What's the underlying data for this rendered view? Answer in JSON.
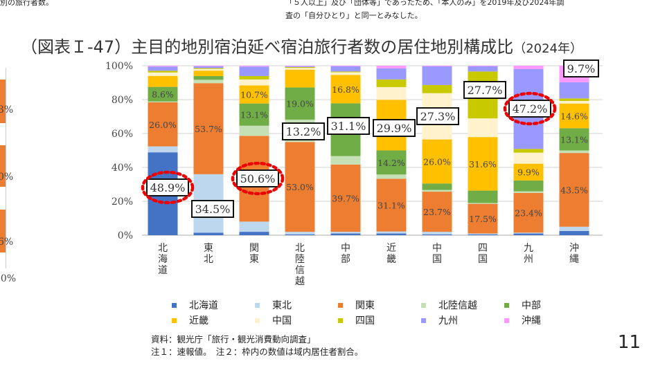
{
  "top_notes": {
    "left": "別の旅行者数。",
    "right_line1": "「５人以上」及び「団体等」であったため、「本人のみ」を2019年及び2024年調",
    "right_line2": "査の「自分ひとり」と同一とみなした。"
  },
  "title": "（図表Ｉ-47）主目的地別宿泊延べ宿泊旅行者数の居住地別構成比",
  "title_year": "（2024年）",
  "left_panel_partial": {
    "labels": [
      "3%",
      "0%",
      "6%"
    ],
    "axis_label": "00%"
  },
  "chart_data": {
    "type": "bar",
    "stacked": true,
    "percent": true,
    "xlabel": "",
    "ylabel": "",
    "ylim": [
      0,
      100
    ],
    "yticks": [
      "0%",
      "20%",
      "40%",
      "60%",
      "80%",
      "100%"
    ],
    "grid": true,
    "legend_position": "bottom",
    "categories": [
      "北海道",
      "東北",
      "関東",
      "北陸信越",
      "中部",
      "近畿",
      "中国",
      "四国",
      "九州",
      "沖縄"
    ],
    "series": [
      {
        "name": "北海道",
        "color": "#4472c4",
        "values": [
          48.9,
          1.5,
          2.0,
          0.5,
          1.0,
          1.0,
          0.5,
          0.5,
          1.0,
          2.5
        ]
      },
      {
        "name": "東北",
        "color": "#bdd7ee",
        "values": [
          3.5,
          34.5,
          6.0,
          1.5,
          1.0,
          1.2,
          1.5,
          0.5,
          0.5,
          2.5
        ]
      },
      {
        "name": "関東",
        "color": "#ed7d31",
        "values": [
          26.0,
          53.7,
          50.6,
          53.0,
          39.7,
          31.1,
          23.7,
          17.5,
          23.4,
          43.5
        ]
      },
      {
        "name": "北陸信越",
        "color": "#c5e0b4",
        "values": [
          0.5,
          2.0,
          6.0,
          13.2,
          5.0,
          2.5,
          1.0,
          0.5,
          1.0,
          1.5
        ]
      },
      {
        "name": "中部",
        "color": "#70ad47",
        "values": [
          8.6,
          2.2,
          13.1,
          19.0,
          31.1,
          14.2,
          3.8,
          7.3,
          6.4,
          13.1
        ]
      },
      {
        "name": "近畿",
        "color": "#ffc000",
        "values": [
          6.5,
          3.2,
          10.7,
          10.5,
          16.8,
          29.9,
          26.0,
          31.6,
          9.9,
          14.6
        ]
      },
      {
        "name": "中国",
        "color": "#fff2cc",
        "values": [
          2.0,
          1.0,
          3.5,
          1.0,
          1.5,
          7.5,
          27.3,
          11.0,
          6.5,
          1.5
        ]
      },
      {
        "name": "四国",
        "color": "#c9c900",
        "values": [
          1.0,
          0.5,
          2.0,
          0.5,
          0.5,
          4.5,
          4.8,
          27.7,
          2.2,
          1.5
        ]
      },
      {
        "name": "九州",
        "color": "#9999ff",
        "values": [
          2.5,
          1.0,
          5.6,
          0.5,
          3.0,
          6.5,
          11.0,
          3.0,
          47.2,
          9.6
        ]
      },
      {
        "name": "沖縄",
        "color": "#ff99ff",
        "values": [
          0.5,
          0.4,
          0.5,
          0.3,
          0.4,
          1.6,
          0.4,
          0.4,
          1.9,
          9.7
        ]
      }
    ],
    "segment_labels": [
      {
        "category": "北海道",
        "series": "関東",
        "text": "26.0%"
      },
      {
        "category": "北海道",
        "series": "中部",
        "text": "8.6%"
      },
      {
        "category": "東北",
        "series": "関東",
        "text": "53.7%"
      },
      {
        "category": "関東",
        "series": "中部",
        "text": "13.1%"
      },
      {
        "category": "関東",
        "series": "近畿",
        "text": "10.7%"
      },
      {
        "category": "北陸信越",
        "series": "関東",
        "text": "53.0%"
      },
      {
        "category": "北陸信越",
        "series": "中部",
        "text": "19.0%"
      },
      {
        "category": "中部",
        "series": "関東",
        "text": "39.7%"
      },
      {
        "category": "中部",
        "series": "近畿",
        "text": "16.8%"
      },
      {
        "category": "近畿",
        "series": "関東",
        "text": "31.1%"
      },
      {
        "category": "近畿",
        "series": "中部",
        "text": "14.2%"
      },
      {
        "category": "中国",
        "series": "関東",
        "text": "23.7%"
      },
      {
        "category": "中国",
        "series": "近畿",
        "text": "26.0%"
      },
      {
        "category": "四国",
        "series": "関東",
        "text": "17.5%"
      },
      {
        "category": "四国",
        "series": "近畿",
        "text": "31.6%"
      },
      {
        "category": "九州",
        "series": "関東",
        "text": "23.4%"
      },
      {
        "category": "九州",
        "series": "近畿",
        "text": "9.9%"
      },
      {
        "category": "沖縄",
        "series": "関東",
        "text": "43.5%"
      },
      {
        "category": "沖縄",
        "series": "中部",
        "text": "13.1%"
      },
      {
        "category": "沖縄",
        "series": "近畿",
        "text": "14.6%"
      }
    ],
    "boxed_labels": [
      {
        "category": "北海道",
        "text": "48.9%",
        "highlighted": true
      },
      {
        "category": "東北",
        "text": "34.5%",
        "highlighted": false
      },
      {
        "category": "関東",
        "text": "50.6%",
        "highlighted": true
      },
      {
        "category": "北陸信越",
        "text": "13.2%",
        "highlighted": false
      },
      {
        "category": "中部",
        "text": "31.1%",
        "highlighted": false
      },
      {
        "category": "近畿",
        "text": "29.9%",
        "highlighted": false
      },
      {
        "category": "中国",
        "text": "27.3%",
        "highlighted": false
      },
      {
        "category": "四国",
        "text": "27.7%",
        "highlighted": false
      },
      {
        "category": "九州",
        "text": "47.2%",
        "highlighted": true
      },
      {
        "category": "沖縄",
        "text": "9.7%",
        "highlighted": false
      }
    ]
  },
  "footer": {
    "source": "資料：観光庁「旅行・観光消費動向調査」",
    "notes": "注１：速報値。　注２：枠内の数値は域内居住者割合。"
  },
  "page_number": "11"
}
